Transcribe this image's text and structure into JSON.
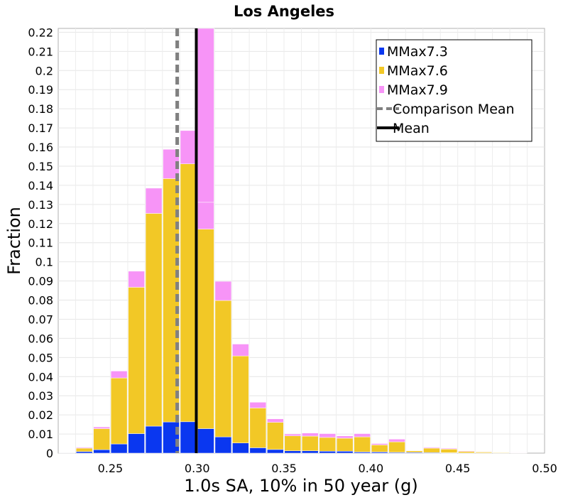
{
  "chart_data": {
    "type": "bar",
    "stacked": true,
    "title": "Los Angeles",
    "xlabel": "1.0s SA, 10% in 50 year (g)",
    "ylabel": "Fraction",
    "xlim": [
      0.22,
      0.5
    ],
    "ylim": [
      0,
      0.222
    ],
    "x_ticks": [
      "0.25",
      "0.30",
      "0.35",
      "0.40",
      "0.45",
      "0.50"
    ],
    "y_ticks": [
      "0",
      "0.01",
      "0.02",
      "0.03",
      "0.04",
      "0.05",
      "0.06",
      "0.07",
      "0.08",
      "0.09",
      "0.1",
      "0.11",
      "0.12",
      "0.13",
      "0.14",
      "0.15",
      "0.16",
      "0.17",
      "0.18",
      "0.19",
      "0.2",
      "0.21",
      "0.22"
    ],
    "grid": true,
    "legend_position": "top-right",
    "bin_width": 0.01,
    "bins": [
      0.22,
      0.23,
      0.24,
      0.25,
      0.26,
      0.27,
      0.28,
      0.29,
      0.3,
      0.31,
      0.32,
      0.33,
      0.34,
      0.35,
      0.36,
      0.37,
      0.38,
      0.39,
      0.4,
      0.41,
      0.42,
      0.43,
      0.44,
      0.45,
      0.46,
      0.47,
      0.48
    ],
    "series": [
      {
        "name": "MMax7.3",
        "color": "#0a37f0",
        "values": [
          0.0002,
          0.0008,
          0.0018,
          0.0048,
          0.0102,
          0.0141,
          0.0163,
          0.0164,
          0.0128,
          0.0085,
          0.0053,
          0.0028,
          0.0019,
          0.0012,
          0.0012,
          0.001,
          0.001,
          0.0006,
          0.0006,
          0.0004,
          0.0004,
          0.0003,
          0.0002,
          0.0001,
          0.0001,
          0.0001,
          0.0001
        ]
      },
      {
        "name": "MMax7.6",
        "color": "#f2c826",
        "values": [
          0.0002,
          0.0018,
          0.011,
          0.0345,
          0.0765,
          0.1112,
          0.1272,
          0.1348,
          0.1043,
          0.0713,
          0.0455,
          0.0208,
          0.0142,
          0.0078,
          0.0077,
          0.0072,
          0.0068,
          0.0079,
          0.0037,
          0.0055,
          0.0008,
          0.0023,
          0.0019,
          0.0008,
          0.0005,
          0.0003,
          0.0002
        ]
      },
      {
        "name": "MMax7.9",
        "color": "#f794f7",
        "values": [
          0.0001,
          0.0004,
          0.0009,
          0.0036,
          0.0084,
          0.0132,
          0.0153,
          0.0174,
          0.014,
          0.01,
          0.0062,
          0.003,
          0.0018,
          0.001,
          0.0016,
          0.002,
          0.0012,
          0.0017,
          0.0007,
          0.0014,
          0.0002,
          0.0004,
          0.0004,
          0.0003,
          0.0002,
          0.0001,
          0.0001
        ]
      }
    ],
    "extra_bar": {
      "x": 0.3,
      "value": 0.232
    },
    "lines": [
      {
        "name": "Comparison Mean",
        "x": 0.2885,
        "color": "#808080",
        "style": "dashed"
      },
      {
        "name": "Mean",
        "x": 0.2995,
        "color": "#000000",
        "style": "solid"
      }
    ]
  }
}
